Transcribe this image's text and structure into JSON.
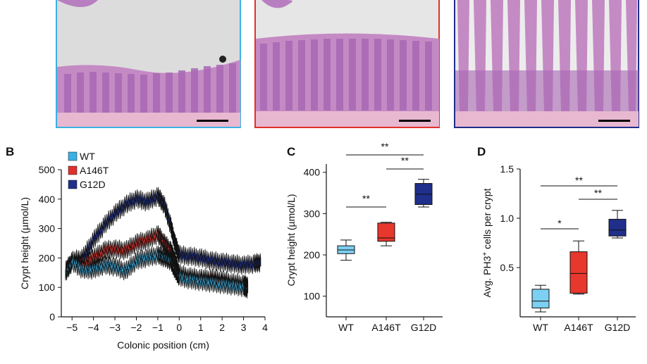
{
  "panels": {
    "b_letter": "B",
    "c_letter": "C",
    "d_letter": "D"
  },
  "histology": [
    {
      "name": "WT",
      "border_color": "#3cb0e4"
    },
    {
      "name": "A146T",
      "border_color": "#e0302a"
    },
    {
      "name": "G12D",
      "border_color": "#1f2f8a"
    }
  ],
  "colors": {
    "WT": "#3cb0e4",
    "A146T": "#e0302a",
    "G12D": "#1f2f8a",
    "box_wt": "#7dd0f2",
    "box_a146t": "#e8372c",
    "box_g12d": "#1f2f8a"
  },
  "chart_data": [
    {
      "type": "line",
      "panel": "B",
      "xlabel": "Colonic position (cm)",
      "ylabel": "Crypt height (µmol/L)",
      "xlim": [
        -5.5,
        4
      ],
      "ylim": [
        0,
        500
      ],
      "xticks": [
        -5,
        -4,
        -3,
        -2,
        -1,
        0,
        1,
        2,
        3,
        4
      ],
      "xtick_labels": [
        "−5",
        "−4",
        "−3",
        "−2",
        "−1",
        "0",
        "1",
        "2",
        "3",
        "4"
      ],
      "yticks": [
        0,
        100,
        200,
        300,
        400,
        500
      ],
      "legend": [
        "WT",
        "A146T",
        "G12D"
      ],
      "legend_position": "top-left",
      "series": [
        {
          "name": "WT",
          "x": [
            -5.3,
            -5.0,
            -4.5,
            -4.0,
            -3.5,
            -3.0,
            -2.5,
            -2.0,
            -1.5,
            -1.0,
            -0.7,
            -0.4,
            -0.2,
            0.0,
            0.5,
            1.0,
            1.5,
            2.0,
            2.5,
            3.0,
            3.2
          ],
          "y": [
            150,
            185,
            160,
            160,
            175,
            170,
            155,
            190,
            200,
            210,
            200,
            190,
            160,
            135,
            125,
            120,
            115,
            110,
            105,
            100,
            95
          ]
        },
        {
          "name": "A146T",
          "x": [
            -5.3,
            -5.0,
            -4.5,
            -4.0,
            -3.5,
            -3.0,
            -2.5,
            -2.0,
            -1.5,
            -1.0,
            -0.7,
            -0.4,
            -0.2,
            0.0,
            0.5,
            1.0,
            1.5,
            2.0,
            2.5,
            3.0,
            3.2
          ],
          "y": [
            155,
            190,
            180,
            200,
            225,
            230,
            225,
            250,
            260,
            280,
            250,
            225,
            190,
            145,
            135,
            130,
            130,
            125,
            115,
            110,
            105
          ]
        },
        {
          "name": "G12D",
          "x": [
            -5.3,
            -5.0,
            -4.5,
            -4.0,
            -3.5,
            -3.0,
            -2.5,
            -2.0,
            -1.5,
            -1.0,
            -0.7,
            -0.4,
            -0.2,
            0.0,
            0.5,
            1.0,
            1.5,
            2.0,
            2.5,
            3.0,
            3.5,
            3.8
          ],
          "y": [
            155,
            190,
            200,
            260,
            310,
            350,
            380,
            400,
            390,
            410,
            380,
            310,
            250,
            210,
            205,
            200,
            190,
            185,
            180,
            175,
            180,
            185
          ]
        }
      ]
    },
    {
      "type": "box",
      "panel": "C",
      "ylabel": "Crypt height (µmol/L)",
      "ylim": [
        50,
        420
      ],
      "yticks": [
        100,
        200,
        300,
        400
      ],
      "categories": [
        "WT",
        "A146T",
        "G12D"
      ],
      "boxes": [
        {
          "name": "WT",
          "min": 187,
          "q1": 203,
          "median": 212,
          "q3": 222,
          "max": 236
        },
        {
          "name": "A146T",
          "min": 222,
          "q1": 233,
          "median": 241,
          "q3": 277,
          "max": 279
        },
        {
          "name": "G12D",
          "min": 316,
          "q1": 322,
          "median": 347,
          "q3": 373,
          "max": 383
        }
      ],
      "significance": [
        {
          "from": "WT",
          "to": "A146T",
          "label": "**"
        },
        {
          "from": "A146T",
          "to": "G12D",
          "label": "**"
        },
        {
          "from": "WT",
          "to": "G12D",
          "label": "**"
        }
      ]
    },
    {
      "type": "box",
      "panel": "D",
      "ylabel_pre": "Avg. PH3",
      "ylabel_sup": "+",
      "ylabel_post": " cells per crypt",
      "ylim": [
        0,
        1.5
      ],
      "yticks": [
        0.5,
        1.0,
        1.5
      ],
      "ytick_labels": [
        "0.5",
        "1.0",
        "1.5"
      ],
      "categories": [
        "WT",
        "A146T",
        "G12D"
      ],
      "boxes": [
        {
          "name": "WT",
          "min": 0.05,
          "q1": 0.09,
          "median": 0.16,
          "q3": 0.28,
          "max": 0.32
        },
        {
          "name": "A146T",
          "min": 0.23,
          "q1": 0.24,
          "median": 0.44,
          "q3": 0.66,
          "max": 0.77
        },
        {
          "name": "G12D",
          "min": 0.8,
          "q1": 0.82,
          "median": 0.88,
          "q3": 0.99,
          "max": 1.08
        }
      ],
      "significance": [
        {
          "from": "WT",
          "to": "A146T",
          "label": "*"
        },
        {
          "from": "A146T",
          "to": "G12D",
          "label": "**"
        },
        {
          "from": "WT",
          "to": "G12D",
          "label": "**"
        }
      ]
    }
  ]
}
